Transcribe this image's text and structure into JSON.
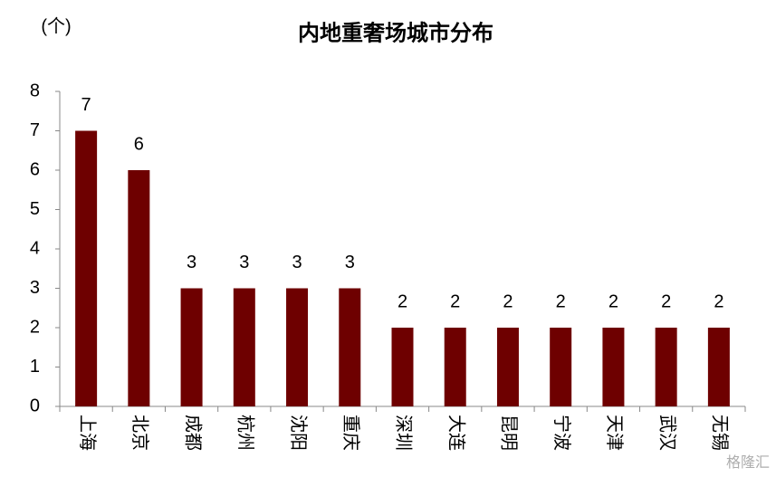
{
  "chart_data": {
    "type": "bar",
    "title": "内地重奢场城市分布",
    "y_axis_label": "(个)",
    "categories": [
      "上海",
      "北京",
      "成都",
      "杭州",
      "沈阳",
      "重庆",
      "深圳",
      "大连",
      "昆明",
      "宁波",
      "天津",
      "武汉",
      "无锡"
    ],
    "values": [
      7,
      6,
      3,
      3,
      3,
      3,
      2,
      2,
      2,
      2,
      2,
      2,
      2
    ],
    "color": "#6e0000",
    "ylim": [
      0,
      8
    ],
    "yticks": [
      0,
      1,
      2,
      3,
      4,
      5,
      6,
      7,
      8
    ],
    "grid": false,
    "watermark": "格隆汇"
  }
}
